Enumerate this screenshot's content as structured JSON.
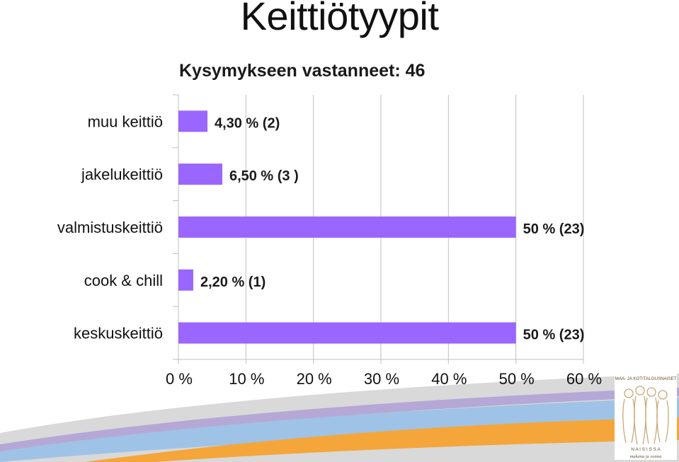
{
  "title": "Keittiötyypit",
  "subtitle": "Kysymykseen vastanneet: 46",
  "colors": {
    "bar": "#9966ff",
    "grid": "#bfbfbf",
    "wave_orange": "#f4a63a",
    "wave_blue": "#9fc3e6",
    "wave_gray": "#d9d9d9",
    "wave_purple": "#b5a8d6"
  },
  "chart_data": {
    "type": "bar",
    "orientation": "horizontal",
    "categories": [
      "muu keittiö",
      "jakelukeittiö",
      "valmistuskeittiö",
      "cook & chill",
      "keskuskeittiö"
    ],
    "values": [
      4.3,
      6.5,
      50,
      2.2,
      50
    ],
    "data_labels": [
      "4,30 % (2)",
      "6,50 % (3 )",
      "50 % (23)",
      "2,20 % (1)",
      "50 % (23)"
    ],
    "xlim": [
      0,
      60
    ],
    "x_ticks": [
      0,
      10,
      20,
      30,
      40,
      50,
      60
    ],
    "x_tick_labels": [
      "0 %",
      "10 %",
      "20 %",
      "30 %",
      "40 %",
      "50 %",
      "60 %"
    ],
    "grid": true,
    "legend": "none"
  },
  "logo": {
    "text_top": "MAA- JA KOTITALOUSNAISET",
    "text_bottom": "N A I S I S S A",
    "script": "mukana ja voima"
  }
}
